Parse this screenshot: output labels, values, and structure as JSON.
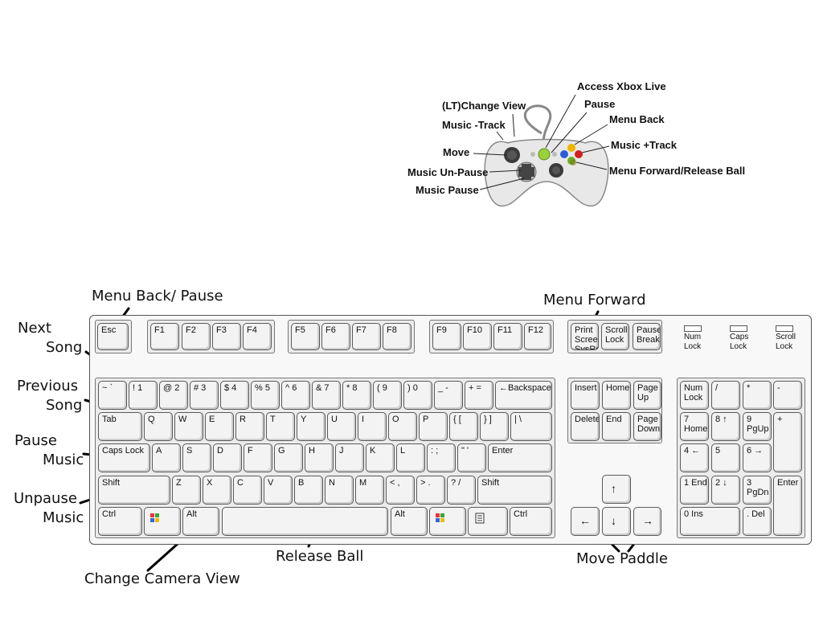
{
  "controller": {
    "labels": [
      {
        "id": "access-xbox-live",
        "text": "Access Xbox Live"
      },
      {
        "id": "lt-change-view",
        "text": "(LT)Change View"
      },
      {
        "id": "pause",
        "text": "Pause"
      },
      {
        "id": "music-minus-track",
        "text": "Music -Track"
      },
      {
        "id": "menu-back",
        "text": "Menu Back"
      },
      {
        "id": "music-plus-track",
        "text": "Music +Track"
      },
      {
        "id": "move",
        "text": "Move"
      },
      {
        "id": "menu-forward-release-ball",
        "text": "Menu Forward/Release Ball"
      },
      {
        "id": "music-un-pause",
        "text": "Music Un-Pause"
      },
      {
        "id": "music-pause",
        "text": "Music Pause"
      }
    ]
  },
  "keyboard_annotations": {
    "menu_back_pause": "Menu Back/ Pause",
    "next_song_1": "Next",
    "next_song_2": "Song",
    "previous_song_1": "Previous",
    "previous_song_2": "Song",
    "pause_music_1": "Pause",
    "pause_music_2": "Music",
    "unpause_music_1": "Unpause",
    "unpause_music_2": "Music",
    "menu_forward": "Menu Forward",
    "release_ball": "Release Ball",
    "change_camera_view": "Change Camera View",
    "move_paddle": "Move Paddle"
  },
  "keys": {
    "esc": "Esc",
    "f1": "F1",
    "f2": "F2",
    "f3": "F3",
    "f4": "F4",
    "f5": "F5",
    "f6": "F6",
    "f7": "F7",
    "f8": "F8",
    "f9": "F9",
    "f10": "F10",
    "f11": "F11",
    "f12": "F12",
    "prtsc": "Print Screen SysRq",
    "scroll": "Scroll Lock",
    "pause": "Pause Break",
    "tilde": "~ `",
    "k1": "! 1",
    "k2": "@ 2",
    "k3": "# 3",
    "k4": "$ 4",
    "k5": "% 5",
    "k6": "^ 6",
    "k7": "& 7",
    "k8": "* 8",
    "k9": "( 9",
    "k0": ") 0",
    "minus": "_ -",
    "equals": "+ =",
    "backspace": "←Backspace",
    "tab": "Tab",
    "q": "Q",
    "w": "W",
    "e": "E",
    "r": "R",
    "t": "T",
    "y": "Y",
    "u": "U",
    "i": "I",
    "o": "O",
    "p": "P",
    "lbr": "{ [",
    "rbr": "} ]",
    "bslash": "| \\",
    "caps": "Caps Lock",
    "a": "A",
    "s": "S",
    "d": "D",
    "f": "F",
    "g": "G",
    "h": "H",
    "j": "J",
    "k": "K",
    "l": "L",
    "semi": ": ;",
    "quote": "\" '",
    "enter": "Enter",
    "lshift": "Shift",
    "z": "Z",
    "x": "X",
    "c": "C",
    "v": "V",
    "b": "B",
    "n": "N",
    "m": "M",
    "comma": "< ,",
    "period": "> .",
    "slash": "? /",
    "rshift": "Shift",
    "lctrl": "Ctrl",
    "lalt": "Alt",
    "ralt": "Alt",
    "rctrl": "Ctrl",
    "insert": "Insert",
    "home": "Home",
    "pgup": "Page Up",
    "delete": "Delete",
    "end": "End",
    "pgdn": "Page Down",
    "up": "↑",
    "left": "←",
    "down": "↓",
    "right": "→",
    "numlock": "Num Lock",
    "ndiv": "/",
    "nmul": "*",
    "nminus": "-",
    "n7": "7 Home",
    "n8": "8 ↑",
    "n9": "9 PgUp",
    "nplus": "+",
    "n4": "4 ←",
    "n5": "5",
    "n6": "6 →",
    "n1": "1 End",
    "n2": "2 ↓",
    "n3": "3 PgDn",
    "nenter": "Enter",
    "n0": "0 Ins",
    "ndel": ". Del"
  },
  "leds": {
    "num": "Num Lock",
    "caps": "Caps Lock",
    "scroll": "Scroll Lock"
  }
}
